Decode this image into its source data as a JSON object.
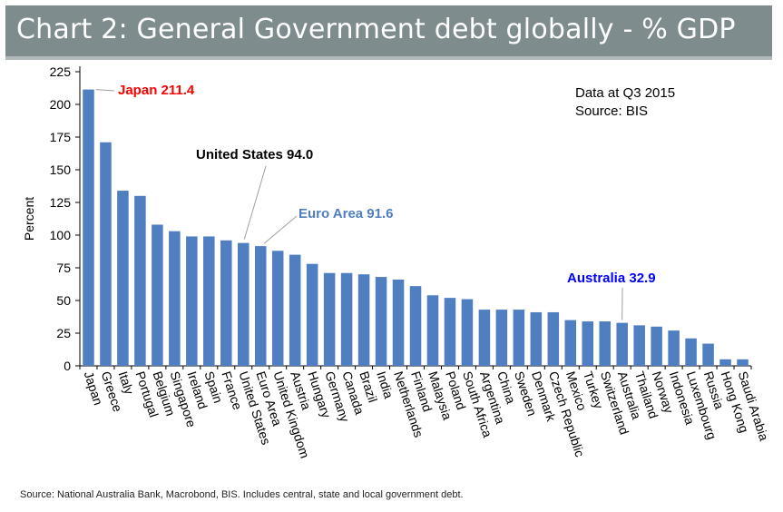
{
  "header": {
    "title": "Chart 2: General Government debt globally - % GDP"
  },
  "chart_data": {
    "type": "bar",
    "title": "Chart 2: General Government debt globally - % GDP",
    "ylabel": "Percent",
    "xlabel": "",
    "ylim": [
      0,
      225
    ],
    "yticks": [
      0,
      25,
      50,
      75,
      100,
      125,
      150,
      175,
      200,
      225
    ],
    "bar_color": "#4f7fc1",
    "categories": [
      "Japan",
      "Greece",
      "Italy",
      "Portugal",
      "Belgium",
      "Singapore",
      "Ireland",
      "Spain",
      "France",
      "United States",
      "Euro Area",
      "United Kingdom",
      "Austria",
      "Hungary",
      "Germany",
      "Canada",
      "Brazil",
      "India",
      "Netherlands",
      "Finland",
      "Malaysia",
      "Poland",
      "South Africa",
      "Argentina",
      "China",
      "Sweden",
      "Denmark",
      "Czech Republic",
      "Mexico",
      "Turkey",
      "Switzerland",
      "Australia",
      "Thailand",
      "Norway",
      "Indonesia",
      "Luxembourg",
      "Russia",
      "Hong Kong",
      "Saudi Arabia"
    ],
    "values": [
      211.4,
      171,
      134,
      130,
      108,
      103,
      99,
      99,
      96,
      94.0,
      91.6,
      88,
      85,
      78,
      71,
      71,
      70,
      68,
      66,
      61,
      54,
      52,
      51,
      43,
      43,
      43,
      41,
      41,
      35,
      34,
      34,
      32.9,
      31,
      30,
      27,
      21,
      17,
      5,
      5
    ],
    "annotations": [
      {
        "text": "Japan 211.4",
        "category": "Japan",
        "color": "#ff0000"
      },
      {
        "text": "United States 94.0",
        "category": "United States",
        "color": "#000000"
      },
      {
        "text": "Euro Area 91.6",
        "category": "Euro Area",
        "color": "#4f7fc1"
      },
      {
        "text": "Australia 32.9",
        "category": "Australia",
        "color": "#0000ff"
      }
    ],
    "info_lines": [
      "Data at Q3 2015",
      "Source:  BIS"
    ]
  },
  "footnote": "Source: National Australia Bank, Macrobond, BIS.  Includes central, state and local government debt."
}
